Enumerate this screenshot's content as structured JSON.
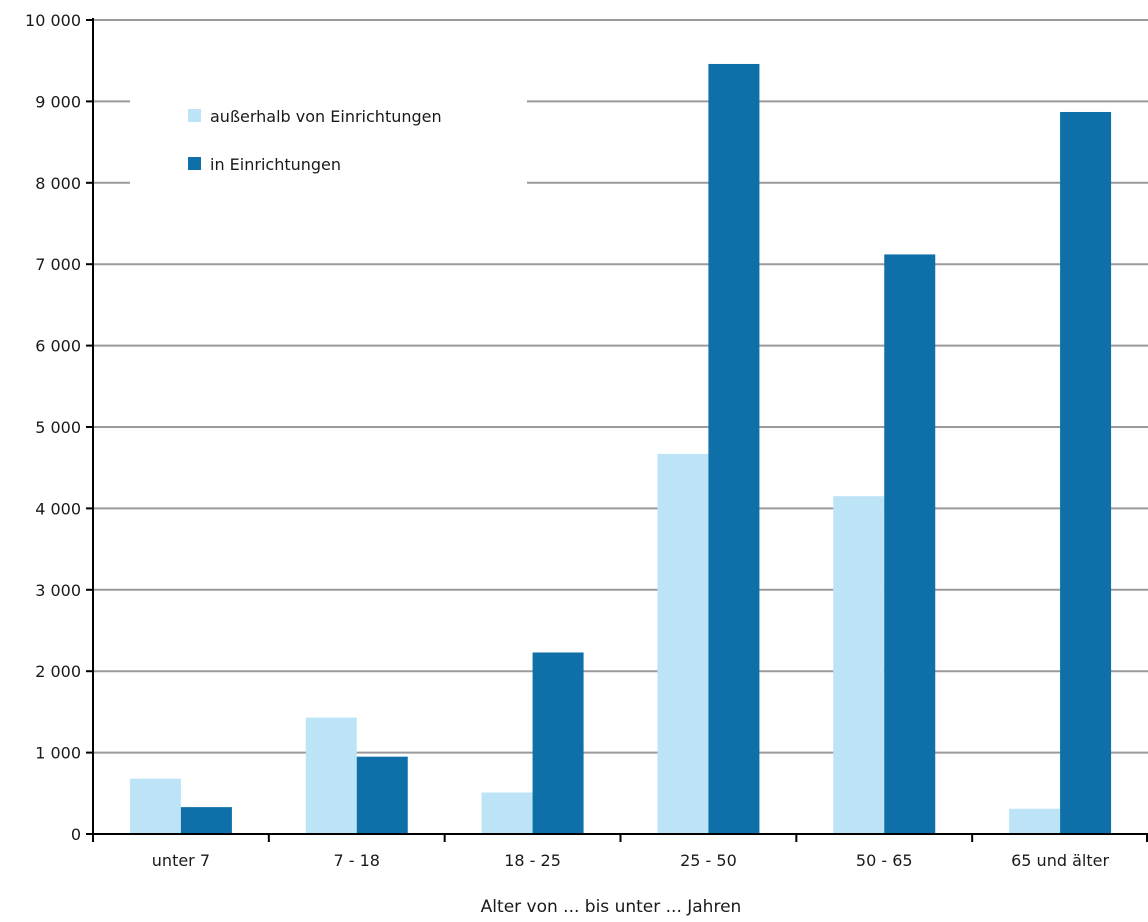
{
  "chart_data": {
    "type": "bar",
    "categories": [
      "unter 7",
      "7 - 18",
      "18 - 25",
      "25 - 50",
      "50 - 65",
      "65 und älter"
    ],
    "series": [
      {
        "name": "außerhalb von Einrichtungen",
        "color": "#bde3f7",
        "values": [
          680,
          1430,
          510,
          4670,
          4150,
          310
        ]
      },
      {
        "name": "in Einrichtungen",
        "color": "#0f6fa8",
        "values": [
          330,
          950,
          2230,
          9460,
          7120,
          8870
        ]
      }
    ],
    "xlabel": "Alter von ... bis unter ... Jahren",
    "ylabel": "",
    "ylim": [
      0,
      10000
    ],
    "yticks": [
      0,
      1000,
      2000,
      3000,
      4000,
      5000,
      6000,
      7000,
      8000,
      9000,
      10000
    ],
    "ytick_labels": [
      "0",
      "1 000",
      "2 000",
      "3 000",
      "4 000",
      "5 000",
      "6 000",
      "7 000",
      "8 000",
      "9 000",
      "10 000"
    ],
    "grid": true,
    "gridline_color": "#9a9a9a",
    "legend_position": "top-left"
  }
}
